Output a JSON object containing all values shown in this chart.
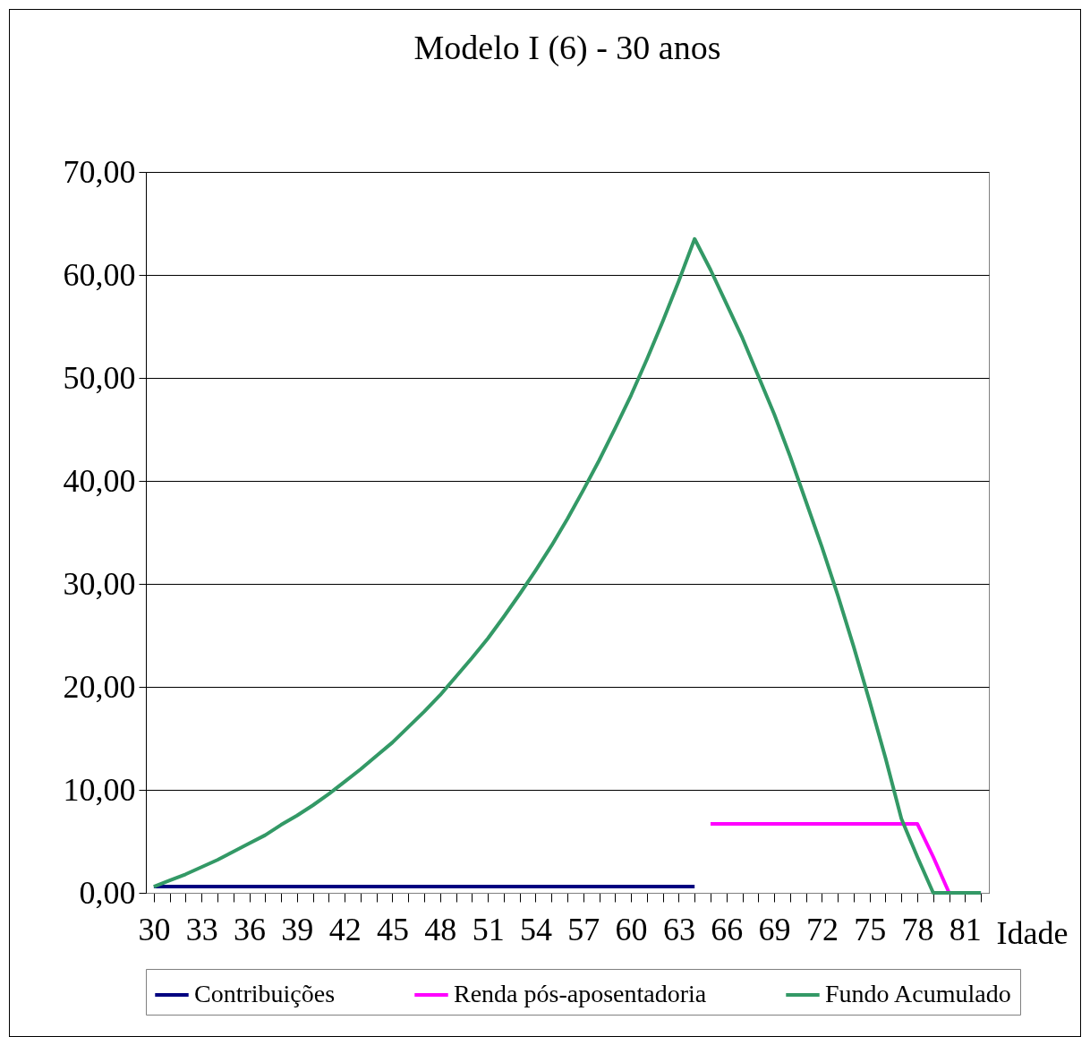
{
  "chart_data": {
    "type": "line",
    "title": "Modelo I (6) - 30 anos",
    "xlabel": "Idade",
    "categories": [
      "30",
      null,
      null,
      "33",
      null,
      null,
      "36",
      null,
      null,
      "39",
      null,
      null,
      "42",
      null,
      null,
      "45",
      null,
      null,
      "48",
      null,
      null,
      "51",
      null,
      null,
      "54",
      null,
      null,
      "57",
      null,
      null,
      "60",
      null,
      null,
      "63",
      null,
      null,
      "66",
      null,
      null,
      "69",
      null,
      null,
      "72",
      null,
      null,
      "75",
      null,
      null,
      "78",
      null,
      null,
      "81",
      null
    ],
    "series": [
      {
        "name": "Contribuições",
        "color": "#000080",
        "values": [
          0.6,
          0.6,
          0.6,
          0.6,
          0.6,
          0.6,
          0.6,
          0.6,
          0.6,
          0.6,
          0.6,
          0.6,
          0.6,
          0.6,
          0.6,
          0.6,
          0.6,
          0.6,
          0.6,
          0.6,
          0.6,
          0.6,
          0.6,
          0.6,
          0.6,
          0.6,
          0.6,
          0.6,
          0.6,
          0.6,
          0.6,
          0.6,
          0.6,
          0.6,
          0.6,
          null,
          null,
          null,
          null,
          null,
          null,
          null,
          null,
          null,
          null,
          null,
          null,
          null,
          null,
          null,
          null,
          null,
          null
        ]
      },
      {
        "name": "Renda pós-aposentadoria",
        "color": "#ff00ff",
        "values": [
          null,
          null,
          null,
          null,
          null,
          null,
          null,
          null,
          null,
          null,
          null,
          null,
          null,
          null,
          null,
          null,
          null,
          null,
          null,
          null,
          null,
          null,
          null,
          null,
          null,
          null,
          null,
          null,
          null,
          null,
          null,
          null,
          null,
          null,
          null,
          6.7,
          6.7,
          6.7,
          6.7,
          6.7,
          6.7,
          6.7,
          6.7,
          6.7,
          6.7,
          6.7,
          6.7,
          6.7,
          6.7,
          3.5,
          0,
          0,
          0
        ]
      },
      {
        "name": "Fundo Acumulado",
        "color": "#339966",
        "values": [
          0.6,
          1.2,
          1.8,
          2.5,
          3.2,
          4.0,
          4.8,
          5.6,
          6.6,
          7.5,
          8.5,
          9.6,
          10.8,
          12.0,
          13.3,
          14.6,
          16.1,
          17.6,
          19.2,
          21.0,
          22.8,
          24.7,
          26.8,
          29.0,
          31.3,
          33.7,
          36.3,
          39.1,
          42.0,
          45.1,
          48.3,
          51.8,
          55.5,
          59.4,
          63.5,
          60.5,
          57.2,
          53.9,
          50.2,
          46.5,
          42.4,
          38.0,
          33.6,
          28.9,
          23.9,
          18.6,
          13.1,
          7.2,
          3.5,
          0,
          0,
          0,
          0
        ]
      }
    ],
    "ylim": [
      0,
      70
    ],
    "yticks": [
      {
        "value": 0,
        "label": "0,00"
      },
      {
        "value": 10,
        "label": "10,00"
      },
      {
        "value": 20,
        "label": "20,00"
      },
      {
        "value": 30,
        "label": "30,00"
      },
      {
        "value": 40,
        "label": "40,00"
      },
      {
        "value": 50,
        "label": "50,00"
      },
      {
        "value": 60,
        "label": "60,00"
      },
      {
        "value": 70,
        "label": "70,00"
      }
    ],
    "grid": "y",
    "legend": "bottom",
    "marker": "none",
    "line_style": "solid"
  }
}
